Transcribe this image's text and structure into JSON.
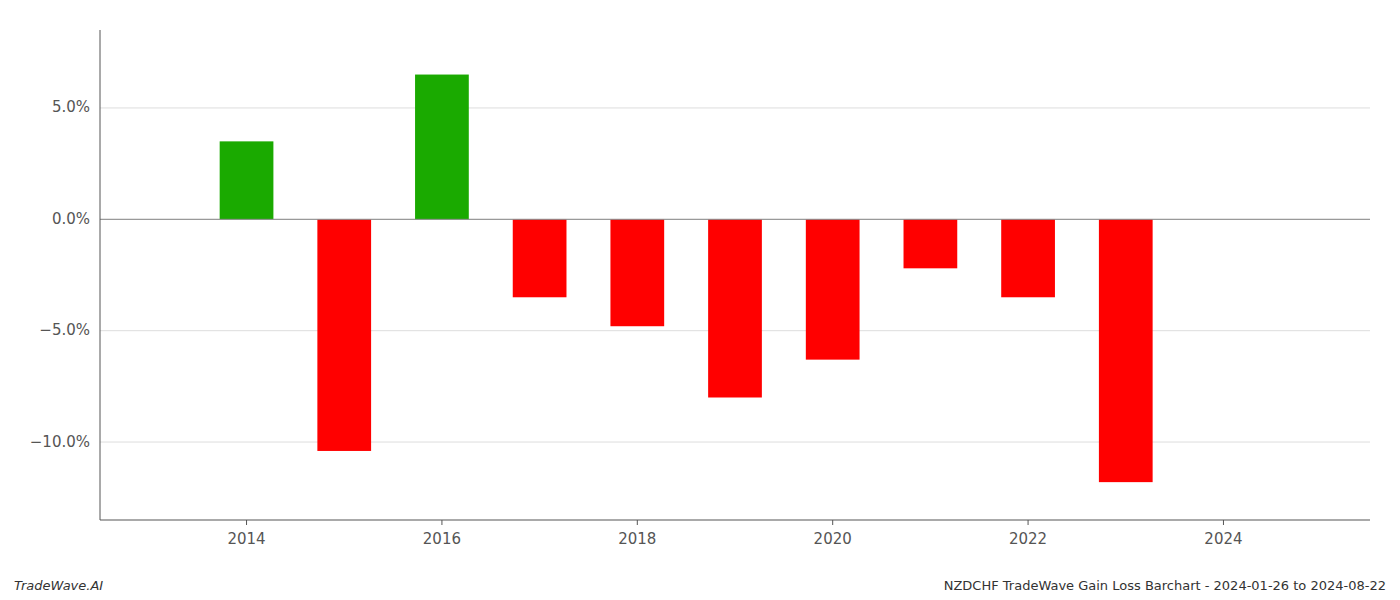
{
  "chart_data": {
    "type": "bar",
    "x": [
      2014,
      2015,
      2016,
      2017,
      2018,
      2019,
      2020,
      2021,
      2022,
      2023
    ],
    "values": [
      3.5,
      -10.4,
      6.5,
      -3.5,
      -4.8,
      -8.0,
      -6.3,
      -2.2,
      -3.5,
      -11.8
    ],
    "colors": [
      "#1aaa00",
      "#ff0000",
      "#1aaa00",
      "#ff0000",
      "#ff0000",
      "#ff0000",
      "#ff0000",
      "#ff0000",
      "#ff0000",
      "#ff0000"
    ],
    "ylim": [
      -13.5,
      8.5
    ],
    "yticks": [
      {
        "value": -10.0,
        "label": "−10.0%"
      },
      {
        "value": -5.0,
        "label": "−5.0%"
      },
      {
        "value": 0.0,
        "label": "0.0%"
      },
      {
        "value": 5.0,
        "label": "5.0%"
      }
    ],
    "xlim": [
      2012.5,
      2025.5
    ],
    "xticks": [
      2014,
      2016,
      2018,
      2020,
      2022,
      2024
    ],
    "grid": true,
    "annotations": [
      "TradeWave.AI",
      "NZDCHF TradeWave Gain Loss Barchart - 2024-01-26 to 2024-08-22"
    ]
  }
}
